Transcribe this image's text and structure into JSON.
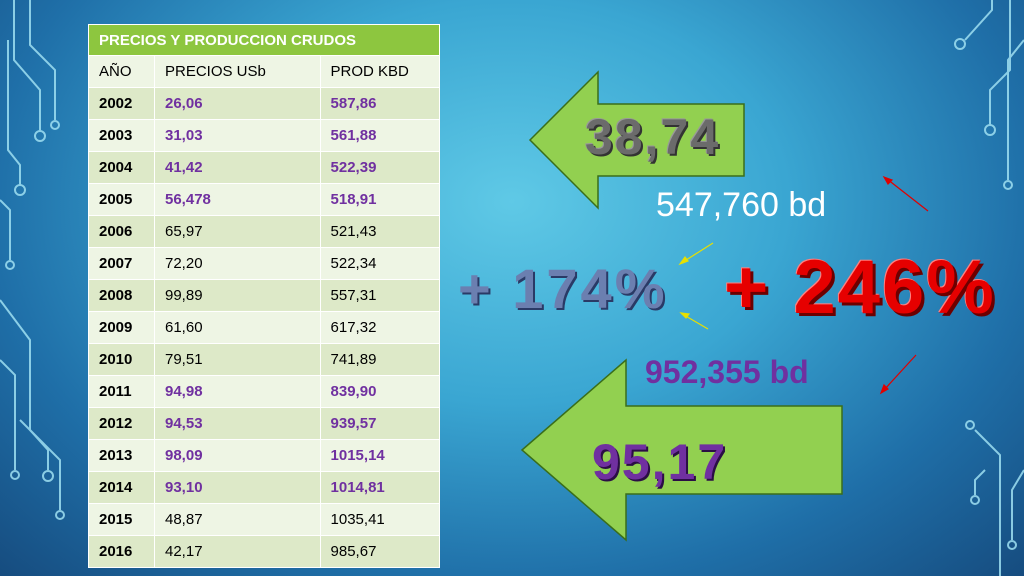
{
  "table": {
    "title": "PRECIOS Y PRODUCCION CRUDOS",
    "headers": [
      "AÑO",
      "PRECIOS USb",
      "PROD KBD"
    ],
    "rows": [
      [
        "2002",
        "26,06",
        "587,86"
      ],
      [
        "2003",
        "31,03",
        "561,88"
      ],
      [
        "2004",
        "41,42",
        "522,39"
      ],
      [
        "2005",
        "56,478",
        "518,91"
      ],
      [
        "2006",
        "65,97",
        "521,43"
      ],
      [
        "2007",
        "72,20",
        "522,34"
      ],
      [
        "2008",
        "99,89",
        "557,31"
      ],
      [
        "2009",
        "61,60",
        "617,32"
      ],
      [
        "2010",
        "79,51",
        "741,89"
      ],
      [
        "2011",
        "94,98",
        "839,90"
      ],
      [
        "2012",
        "94,53",
        "939,57"
      ],
      [
        "2013",
        "98,09",
        "1015,14"
      ],
      [
        "2014",
        "93,10",
        "1014,81"
      ],
      [
        "2015",
        "48,87",
        "1035,41"
      ],
      [
        "2016",
        "42,17",
        "985,67"
      ]
    ]
  },
  "annotations": {
    "price_low": "38,74",
    "prod_low": "547,760 bd",
    "price_pct": "+ 174%",
    "prod_pct": "+ 246%",
    "prod_high": "952,355 bd",
    "price_high": "95,17"
  },
  "colors": {
    "arrow_fill": "#92d050",
    "header_green": "#8dc63f",
    "highlight_purple": "#7030a0",
    "percent_red": "#e60000"
  }
}
